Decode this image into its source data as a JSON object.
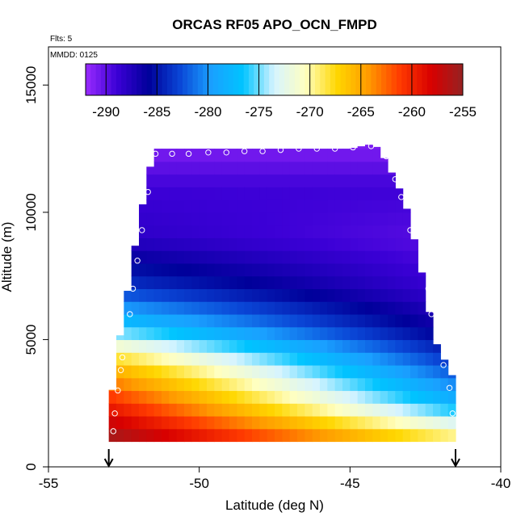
{
  "chart_data": {
    "type": "heatmap",
    "title": "ORCAS RF05 APO_OCN_FMPD",
    "xlabel": "Latitude (deg N)",
    "ylabel": "Altitude (m)",
    "annotations": [
      "Flts: 5",
      "MMDD: 0125"
    ],
    "xlim": [
      -55,
      -40
    ],
    "ylim": [
      0,
      16500
    ],
    "x_ticks": [
      -55,
      -50,
      -45,
      -40
    ],
    "x_tick_labels": [
      "-55",
      "-50",
      "-45",
      "-40"
    ],
    "y_ticks": [
      0,
      5000,
      10000,
      15000
    ],
    "y_tick_labels": [
      "0",
      "5000",
      "10000",
      "15000"
    ],
    "colorbar": {
      "min": -292,
      "max": -255,
      "ticks": [
        -290,
        -285,
        -280,
        -275,
        -270,
        -265,
        -260,
        -255
      ],
      "tick_labels": [
        "-290",
        "-285",
        "-280",
        "-275",
        "-270",
        "-265",
        "-260",
        "-255"
      ],
      "colors": [
        "#9a2bff",
        "#3b00d6",
        "#00009a",
        "#0a46d6",
        "#1aa0ff",
        "#00c4ff",
        "#d6f4ff",
        "#ffffc0",
        "#ffd700",
        "#ff9a00",
        "#ff3a00",
        "#d80000",
        "#962222"
      ]
    },
    "domain_profile": [
      {
        "lat": -53.0,
        "alt_max": 1400
      },
      {
        "lat": -52.8,
        "alt_max": 4000
      },
      {
        "lat": -52.5,
        "alt_max": 6000
      },
      {
        "lat": -52.2,
        "alt_max": 8200
      },
      {
        "lat": -51.8,
        "alt_max": 10800
      },
      {
        "lat": -51.5,
        "alt_max": 12500
      },
      {
        "lat": -45.0,
        "alt_max": 12500
      },
      {
        "lat": -44.2,
        "alt_max": 12700
      },
      {
        "lat": -43.8,
        "alt_max": 12000
      },
      {
        "lat": -43.2,
        "alt_max": 10500
      },
      {
        "lat": -42.7,
        "alt_max": 8100
      },
      {
        "lat": -42.2,
        "alt_max": 5000
      },
      {
        "lat": -41.5,
        "alt_max": 3300
      }
    ],
    "field_model": {
      "description_values": "APO value vs altitude along profile",
      "profile": [
        {
          "alt": 1000,
          "south": -255,
          "north": -268
        },
        {
          "alt": 2500,
          "south": -260,
          "north": -278
        },
        {
          "alt": 4000,
          "south": -266,
          "north": -283
        },
        {
          "alt": 5500,
          "south": -276,
          "north": -287
        },
        {
          "alt": 7000,
          "south": -283,
          "north": -289
        },
        {
          "alt": 9000,
          "south": -288,
          "north": -290
        },
        {
          "alt": 11000,
          "south": -289,
          "north": -289
        },
        {
          "alt": 12500,
          "south": -291,
          "north": -291
        }
      ]
    },
    "flight_track_points": [
      {
        "lat": -52.85,
        "alt": 1400
      },
      {
        "lat": -52.8,
        "alt": 2100
      },
      {
        "lat": -52.7,
        "alt": 3000
      },
      {
        "lat": -52.6,
        "alt": 3800
      },
      {
        "lat": -52.55,
        "alt": 4300
      },
      {
        "lat": -52.3,
        "alt": 6000
      },
      {
        "lat": -52.2,
        "alt": 7000
      },
      {
        "lat": -52.05,
        "alt": 8100
      },
      {
        "lat": -51.9,
        "alt": 9300
      },
      {
        "lat": -51.7,
        "alt": 10800
      },
      {
        "lat": -51.45,
        "alt": 12300
      },
      {
        "lat": -50.9,
        "alt": 12300
      },
      {
        "lat": -50.35,
        "alt": 12300
      },
      {
        "lat": -49.7,
        "alt": 12350
      },
      {
        "lat": -49.1,
        "alt": 12350
      },
      {
        "lat": -48.5,
        "alt": 12400
      },
      {
        "lat": -47.9,
        "alt": 12400
      },
      {
        "lat": -47.3,
        "alt": 12450
      },
      {
        "lat": -46.7,
        "alt": 12500
      },
      {
        "lat": -46.1,
        "alt": 12500
      },
      {
        "lat": -45.5,
        "alt": 12500
      },
      {
        "lat": -44.9,
        "alt": 12550
      },
      {
        "lat": -44.3,
        "alt": 12600
      },
      {
        "lat": -43.8,
        "alt": 12200
      },
      {
        "lat": -43.5,
        "alt": 11300
      },
      {
        "lat": -43.3,
        "alt": 10600
      },
      {
        "lat": -43.0,
        "alt": 9300
      },
      {
        "lat": -42.6,
        "alt": 8000
      },
      {
        "lat": -42.4,
        "alt": 7000
      },
      {
        "lat": -42.3,
        "alt": 6000
      },
      {
        "lat": -42.1,
        "alt": 5000
      },
      {
        "lat": -41.9,
        "alt": 4000
      },
      {
        "lat": -41.7,
        "alt": 3100
      },
      {
        "lat": -41.6,
        "alt": 2100
      }
    ],
    "arrows": [
      {
        "lat": -53.0
      },
      {
        "lat": -41.5
      }
    ]
  }
}
